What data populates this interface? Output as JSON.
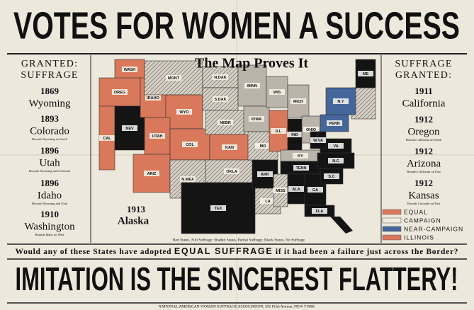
{
  "header": {
    "title": "VOTES FOR WOMEN A SUCCESS"
  },
  "left_panel": {
    "heading": [
      "GRANTED:",
      "SUFFRAGE"
    ],
    "entries": [
      {
        "year": "1869",
        "state": "Wyoming"
      },
      {
        "year": "1893",
        "state": "Colorado",
        "note": "Bounds Wyoming on South"
      },
      {
        "year": "1896",
        "state": "Utah",
        "note": "Bounds Wyoming and Colorado"
      },
      {
        "year": "1896",
        "state": "Idaho",
        "note": "Bounds Wyoming and Utah"
      },
      {
        "year": "1910",
        "state": "Washington",
        "note": "Bounds Idaho on West"
      }
    ]
  },
  "right_panel": {
    "heading": [
      "SUFFRAGE",
      "GRANTED:"
    ],
    "entries": [
      {
        "year": "1911",
        "state": "California"
      },
      {
        "year": "1912",
        "state": "Oregon",
        "note": "Bounds California on North"
      },
      {
        "year": "1912",
        "state": "Arizona",
        "note": "Bounds California on East"
      },
      {
        "year": "1912",
        "state": "Kansas",
        "note": "Bounds Colorado on East"
      }
    ]
  },
  "map": {
    "title": "The Map Proves It",
    "state_labels": [
      "WASH",
      "OREG",
      "CAL",
      "NEV",
      "IDAHO",
      "MONT",
      "WYO",
      "UTAH",
      "COL",
      "ARIZ",
      "N.MEX",
      "N.DAK",
      "S.DAK",
      "NEBR",
      "KAN",
      "OKLA",
      "TEX",
      "MINN",
      "IOWA",
      "MO",
      "ARK",
      "LA",
      "WIS",
      "ILL",
      "MICH",
      "IND",
      "OHIO",
      "KY",
      "TENN",
      "MISS",
      "ALA",
      "GA",
      "FLA",
      "S.C",
      "N.C",
      "VA",
      "W.VA",
      "PENN",
      "N.Y",
      "ME"
    ],
    "alaska": {
      "year": "1913",
      "state": "Alaska"
    },
    "caption": "Red States, Full Suffrage; Shaded States, Partial Suffrage; Black States, No Suffrage"
  },
  "legend": {
    "items": [
      "EQUAL",
      "CAMPAIGN",
      "NEAR-CAMPAIGN",
      "ILLINOIS"
    ]
  },
  "question": {
    "before": "Would any of these States have adopted",
    "emphasis": "EQUAL SUFFRAGE",
    "after": "if it had been a failure just across the Border?"
  },
  "slogan": "IMITATION IS THE SINCEREST FLATTERY!",
  "footer": "NATIONAL AMERICAN WOMAN SUFFRAGE ASSOCIATION, 505 Fifth Avenue, NEW YORK"
}
